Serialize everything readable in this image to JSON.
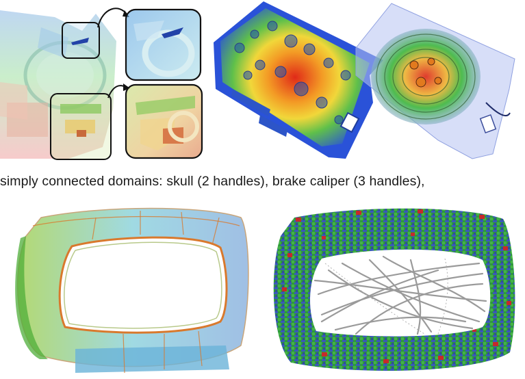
{
  "caption": {
    "text": "simply connected domains: skull (2 handles), brake caliper (3 handles),"
  },
  "panels": {
    "top_left": {
      "icon": "translucent-mesh-with-zoom-insets-icon"
    },
    "top_middle": {
      "icon": "heatmap-caliper-icon"
    },
    "top_right": {
      "icon": "translucent-heatmap-caliper-icon"
    },
    "bottom_left": {
      "icon": "ring-surface-mesh-icon"
    },
    "bottom_right": {
      "icon": "ring-voxel-handles-icon"
    }
  },
  "colors": {
    "heat_red": "#e02a18",
    "heat_yellow": "#f1d73a",
    "heat_green": "#3fb83d",
    "heat_blue": "#2a52d8",
    "voxel_green": "#2e9a3a",
    "voxel_blue": "#3a5ab8",
    "voxel_red": "#c62a2a",
    "mesh_cyan": "#8fd3de",
    "mesh_orange": "#d9792d"
  }
}
